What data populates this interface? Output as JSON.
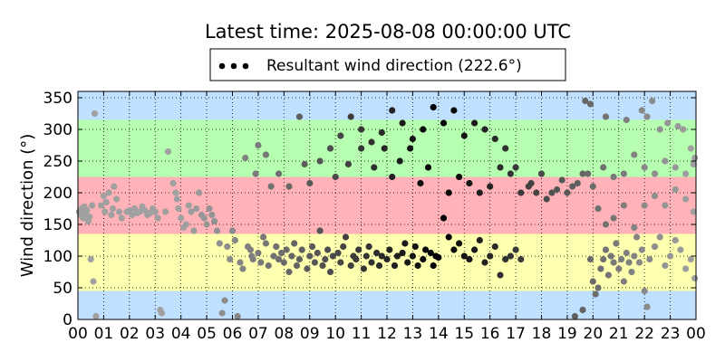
{
  "chart_data": {
    "type": "scatter",
    "title": "Latest time: 2025-08-08 00:00:00 UTC",
    "ylabel": "Wind direction (°)",
    "xlabel": "",
    "x_unit": "hour (UTC)",
    "xlim": [
      0,
      24
    ],
    "ylim": [
      0,
      360
    ],
    "x_tick_labels": [
      "00",
      "01",
      "02",
      "03",
      "04",
      "05",
      "06",
      "07",
      "08",
      "09",
      "10",
      "11",
      "12",
      "13",
      "14",
      "15",
      "16",
      "17",
      "18",
      "19",
      "20",
      "21",
      "22",
      "23",
      "00"
    ],
    "y_ticks": [
      0,
      50,
      100,
      150,
      200,
      250,
      300,
      350
    ],
    "grid": true,
    "grid_style": "dotted",
    "legend": {
      "placement": "top-center",
      "entries": [
        "Resultant wind direction (222.6°)"
      ]
    },
    "bands": [
      {
        "from": 0,
        "to": 45,
        "color": "#bfe0ff"
      },
      {
        "from": 45,
        "to": 135,
        "color": "#ffffb0"
      },
      {
        "from": 135,
        "to": 225,
        "color": "#ffb3b8"
      },
      {
        "from": 225,
        "to": 315,
        "color": "#b6ffb0"
      },
      {
        "from": 315,
        "to": 360,
        "color": "#bfe0ff"
      }
    ],
    "series": [
      {
        "name": "Resultant wind direction (222.6°)",
        "color_latest": "#000000",
        "color_oldest": "#a0a0a0",
        "points": [
          [
            0.05,
            170
          ],
          [
            0.1,
            165
          ],
          [
            0.15,
            175
          ],
          [
            0.2,
            160
          ],
          [
            0.25,
            178
          ],
          [
            0.3,
            168
          ],
          [
            0.35,
            172
          ],
          [
            0.4,
            155
          ],
          [
            0.45,
            162
          ],
          [
            0.5,
            95
          ],
          [
            0.55,
            180
          ],
          [
            0.6,
            60
          ],
          [
            0.65,
            325
          ],
          [
            0.7,
            5
          ],
          [
            0.9,
            180
          ],
          [
            1.0,
            195
          ],
          [
            1.05,
            170
          ],
          [
            1.1,
            185
          ],
          [
            1.2,
            200
          ],
          [
            1.3,
            165
          ],
          [
            1.35,
            175
          ],
          [
            1.4,
            210
          ],
          [
            1.5,
            190
          ],
          [
            1.6,
            170
          ],
          [
            1.7,
            160
          ],
          [
            1.9,
            170
          ],
          [
            2.0,
            172
          ],
          [
            2.1,
            165
          ],
          [
            2.2,
            175
          ],
          [
            2.3,
            168
          ],
          [
            2.4,
            170
          ],
          [
            2.5,
            178
          ],
          [
            2.6,
            172
          ],
          [
            2.7,
            165
          ],
          [
            2.8,
            168
          ],
          [
            2.9,
            175
          ],
          [
            3.0,
            170
          ],
          [
            3.1,
            160
          ],
          [
            3.2,
            15
          ],
          [
            3.25,
            10
          ],
          [
            3.4,
            170
          ],
          [
            3.5,
            265
          ],
          [
            3.7,
            215
          ],
          [
            3.8,
            200
          ],
          [
            3.85,
            190
          ],
          [
            3.9,
            175
          ],
          [
            4.0,
            160
          ],
          [
            4.1,
            145
          ],
          [
            4.2,
            150
          ],
          [
            4.3,
            180
          ],
          [
            4.4,
            170
          ],
          [
            4.5,
            140
          ],
          [
            4.6,
            175
          ],
          [
            4.7,
            200
          ],
          [
            4.8,
            165
          ],
          [
            4.9,
            160
          ],
          [
            5.0,
            150
          ],
          [
            5.1,
            175
          ],
          [
            5.2,
            165
          ],
          [
            5.3,
            155
          ],
          [
            5.4,
            140
          ],
          [
            5.5,
            120
          ],
          [
            5.6,
            10
          ],
          [
            5.7,
            30
          ],
          [
            5.8,
            115
          ],
          [
            5.9,
            95
          ],
          [
            6.0,
            140
          ],
          [
            6.1,
            125
          ],
          [
            6.2,
            5
          ],
          [
            6.3,
            90
          ],
          [
            6.4,
            80
          ],
          [
            6.6,
            115
          ],
          [
            6.7,
            110
          ],
          [
            6.75,
            100
          ],
          [
            6.8,
            95
          ],
          [
            6.9,
            230
          ],
          [
            7.0,
            105
          ],
          [
            7.1,
            90
          ],
          [
            7.2,
            130
          ],
          [
            7.3,
            120
          ],
          [
            7.4,
            85
          ],
          [
            7.5,
            210
          ],
          [
            7.6,
            100
          ],
          [
            7.7,
            115
          ],
          [
            7.8,
            95
          ],
          [
            7.9,
            105
          ],
          [
            8.0,
            90
          ],
          [
            8.1,
            110
          ],
          [
            8.2,
            75
          ],
          [
            8.3,
            100
          ],
          [
            8.4,
            120
          ],
          [
            8.5,
            85
          ],
          [
            8.6,
            95
          ],
          [
            8.7,
            110
          ],
          [
            8.8,
            245
          ],
          [
            8.9,
            80
          ],
          [
            9.0,
            100
          ],
          [
            9.1,
            115
          ],
          [
            9.2,
            90
          ],
          [
            9.3,
            105
          ],
          [
            9.4,
            140
          ],
          [
            9.5,
            85
          ],
          [
            9.6,
            95
          ],
          [
            9.7,
            110
          ],
          [
            9.8,
            75
          ],
          [
            9.9,
            100
          ],
          [
            10.0,
            225
          ],
          [
            10.1,
            105
          ],
          [
            10.2,
            90
          ],
          [
            10.3,
            115
          ],
          [
            10.4,
            130
          ],
          [
            10.5,
            245
          ],
          [
            10.6,
            85
          ],
          [
            10.7,
            100
          ],
          [
            10.8,
            95
          ],
          [
            10.9,
            110
          ],
          [
            11.0,
            270
          ],
          [
            11.1,
            80
          ],
          [
            11.2,
            100
          ],
          [
            11.3,
            115
          ],
          [
            11.4,
            90
          ],
          [
            11.5,
            240
          ],
          [
            11.6,
            105
          ],
          [
            11.7,
            85
          ],
          [
            11.8,
            100
          ],
          [
            11.9,
            270
          ],
          [
            12.0,
            95
          ],
          [
            12.1,
            110
          ],
          [
            12.2,
            225
          ],
          [
            12.3,
            85
          ],
          [
            12.4,
            100
          ],
          [
            12.5,
            250
          ],
          [
            12.6,
            105
          ],
          [
            12.7,
            120
          ],
          [
            12.8,
            90
          ],
          [
            12.9,
            270
          ],
          [
            13.0,
            100
          ],
          [
            13.1,
            115
          ],
          [
            13.2,
            85
          ],
          [
            13.3,
            215
          ],
          [
            13.4,
            95
          ],
          [
            13.5,
            110
          ],
          [
            13.6,
            240
          ],
          [
            13.7,
            105
          ],
          [
            13.8,
            85
          ],
          [
            13.9,
            100
          ],
          [
            14.0,
            98
          ],
          [
            6.5,
            255
          ],
          [
            7.0,
            275
          ],
          [
            7.3,
            260
          ],
          [
            7.8,
            230
          ],
          [
            8.2,
            210
          ],
          [
            8.6,
            320
          ],
          [
            9.0,
            215
          ],
          [
            9.4,
            250
          ],
          [
            9.8,
            270
          ],
          [
            10.2,
            290
          ],
          [
            10.6,
            320
          ],
          [
            11.0,
            300
          ],
          [
            11.4,
            280
          ],
          [
            11.8,
            295
          ],
          [
            12.2,
            330
          ],
          [
            12.6,
            310
          ],
          [
            13.0,
            285
          ],
          [
            13.4,
            300
          ],
          [
            13.8,
            335
          ],
          [
            14.2,
            310
          ],
          [
            14.6,
            330
          ],
          [
            15.0,
            290
          ],
          [
            15.4,
            310
          ],
          [
            15.8,
            300
          ],
          [
            16.2,
            285
          ],
          [
            16.6,
            270
          ],
          [
            17.0,
            240
          ],
          [
            14.2,
            160
          ],
          [
            14.4,
            130
          ],
          [
            14.6,
            110
          ],
          [
            14.8,
            120
          ],
          [
            15.0,
            100
          ],
          [
            15.2,
            95
          ],
          [
            15.4,
            110
          ],
          [
            15.6,
            125
          ],
          [
            15.8,
            90
          ],
          [
            16.0,
            100
          ],
          [
            16.2,
            115
          ],
          [
            16.4,
            70
          ],
          [
            16.6,
            95
          ],
          [
            16.8,
            100
          ],
          [
            17.0,
            110
          ],
          [
            17.2,
            95
          ],
          [
            14.4,
            200
          ],
          [
            14.8,
            225
          ],
          [
            15.2,
            215
          ],
          [
            15.6,
            200
          ],
          [
            16.0,
            210
          ],
          [
            16.4,
            240
          ],
          [
            16.8,
            230
          ],
          [
            17.2,
            200
          ],
          [
            17.6,
            215
          ],
          [
            18.0,
            230
          ],
          [
            18.4,
            200
          ],
          [
            18.8,
            220
          ],
          [
            19.2,
            210
          ],
          [
            19.6,
            230
          ],
          [
            20.0,
            210
          ],
          [
            20.4,
            240
          ],
          [
            20.8,
            225
          ],
          [
            21.2,
            230
          ],
          [
            21.6,
            260
          ],
          [
            22.0,
            240
          ],
          [
            22.4,
            230
          ],
          [
            22.8,
            250
          ],
          [
            23.2,
            240
          ],
          [
            23.6,
            230
          ],
          [
            23.9,
            245
          ],
          [
            17.5,
            210
          ],
          [
            17.8,
            200
          ],
          [
            18.2,
            190
          ],
          [
            18.6,
            205
          ],
          [
            19.0,
            200
          ],
          [
            19.4,
            215
          ],
          [
            19.8,
            230
          ],
          [
            20.2,
            175
          ],
          [
            20.5,
            150
          ],
          [
            20.8,
            160
          ],
          [
            21.2,
            180
          ],
          [
            21.6,
            145
          ],
          [
            22.0,
            180
          ],
          [
            22.4,
            195
          ],
          [
            22.8,
            180
          ],
          [
            23.2,
            205
          ],
          [
            23.6,
            190
          ],
          [
            23.9,
            170
          ],
          [
            19.3,
            5
          ],
          [
            19.6,
            15
          ],
          [
            19.9,
            95
          ],
          [
            20.0,
            60
          ],
          [
            20.1,
            40
          ],
          [
            20.2,
            50
          ],
          [
            20.3,
            80
          ],
          [
            20.4,
            95
          ],
          [
            20.5,
            110
          ],
          [
            20.6,
            70
          ],
          [
            20.7,
            100
          ],
          [
            20.8,
            90
          ],
          [
            20.9,
            120
          ],
          [
            21.0,
            80
          ],
          [
            21.1,
            95
          ],
          [
            21.2,
            60
          ],
          [
            21.3,
            105
          ],
          [
            21.4,
            90
          ],
          [
            21.5,
            75
          ],
          [
            21.6,
            100
          ],
          [
            21.7,
            130
          ],
          [
            21.8,
            90
          ],
          [
            21.9,
            110
          ],
          [
            22.0,
            45
          ],
          [
            22.1,
            20
          ],
          [
            22.2,
            95
          ],
          [
            22.4,
            115
          ],
          [
            22.6,
            130
          ],
          [
            22.8,
            85
          ],
          [
            23.0,
            100
          ],
          [
            23.2,
            125
          ],
          [
            23.4,
            110
          ],
          [
            23.6,
            80
          ],
          [
            23.8,
            95
          ],
          [
            23.95,
            65
          ],
          [
            19.7,
            345
          ],
          [
            19.9,
            340
          ],
          [
            20.5,
            320
          ],
          [
            21.3,
            315
          ],
          [
            21.9,
            330
          ],
          [
            22.1,
            320
          ],
          [
            22.3,
            345
          ],
          [
            22.6,
            300
          ],
          [
            22.9,
            310
          ],
          [
            23.3,
            305
          ],
          [
            23.5,
            300
          ],
          [
            23.8,
            270
          ],
          [
            23.95,
            255
          ]
        ]
      }
    ]
  }
}
